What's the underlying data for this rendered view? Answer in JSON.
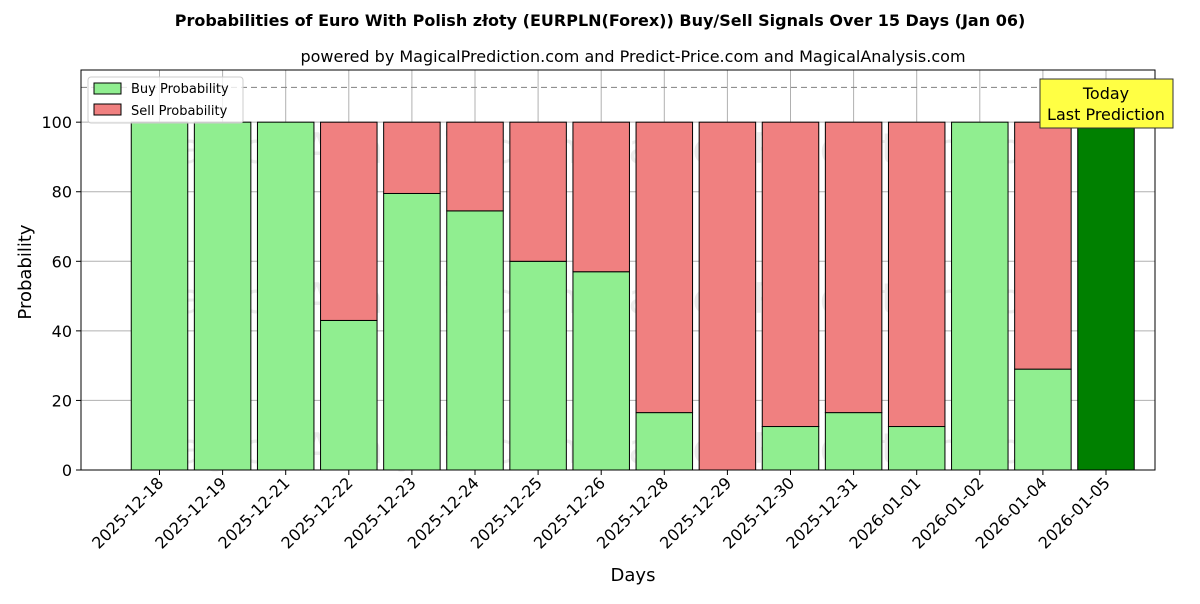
{
  "chart_data": {
    "type": "bar",
    "stacked": true,
    "title": "Probabilities of Euro With Polish złoty (EURPLN(Forex)) Buy/Sell Signals Over 15 Days (Jan 06)",
    "subtitle": "powered by MagicalPrediction.com and Predict-Price.com and MagicalAnalysis.com",
    "xlabel": "Days",
    "ylabel": "Probability",
    "ylim": [
      0,
      115
    ],
    "yticks": [
      0,
      20,
      40,
      60,
      80,
      100
    ],
    "grid": true,
    "legend_position": "top-left",
    "categories": [
      "2025-12-18",
      "2025-12-19",
      "2025-12-21",
      "2025-12-22",
      "2025-12-23",
      "2025-12-24",
      "2025-12-25",
      "2025-12-26",
      "2025-12-28",
      "2025-12-29",
      "2025-12-30",
      "2025-12-31",
      "2026-01-01",
      "2026-01-02",
      "2026-01-04",
      "2026-01-05"
    ],
    "series": [
      {
        "name": "Buy Probability",
        "color": "#90ee90",
        "values": [
          100,
          100,
          100,
          43,
          79.5,
          74.5,
          60,
          57,
          16.5,
          0,
          12.5,
          16.5,
          12.5,
          100,
          29,
          100
        ]
      },
      {
        "name": "Sell Probability",
        "color": "#f08080",
        "values": [
          0,
          0,
          0,
          57,
          20.5,
          25.5,
          40,
          43,
          83.5,
          100,
          87.5,
          83.5,
          87.5,
          0,
          71,
          0
        ]
      }
    ],
    "highlight": {
      "index": 15,
      "color": "#008000"
    },
    "reference_line": {
      "y": 110,
      "style": "dashed",
      "color": "#808080"
    },
    "annotation": {
      "text_line1": "Today",
      "text_line2": "Last Prediction",
      "background": "#ffff44"
    },
    "watermark": "MagicalAnalysis.com     MagicalPrediction.com"
  }
}
